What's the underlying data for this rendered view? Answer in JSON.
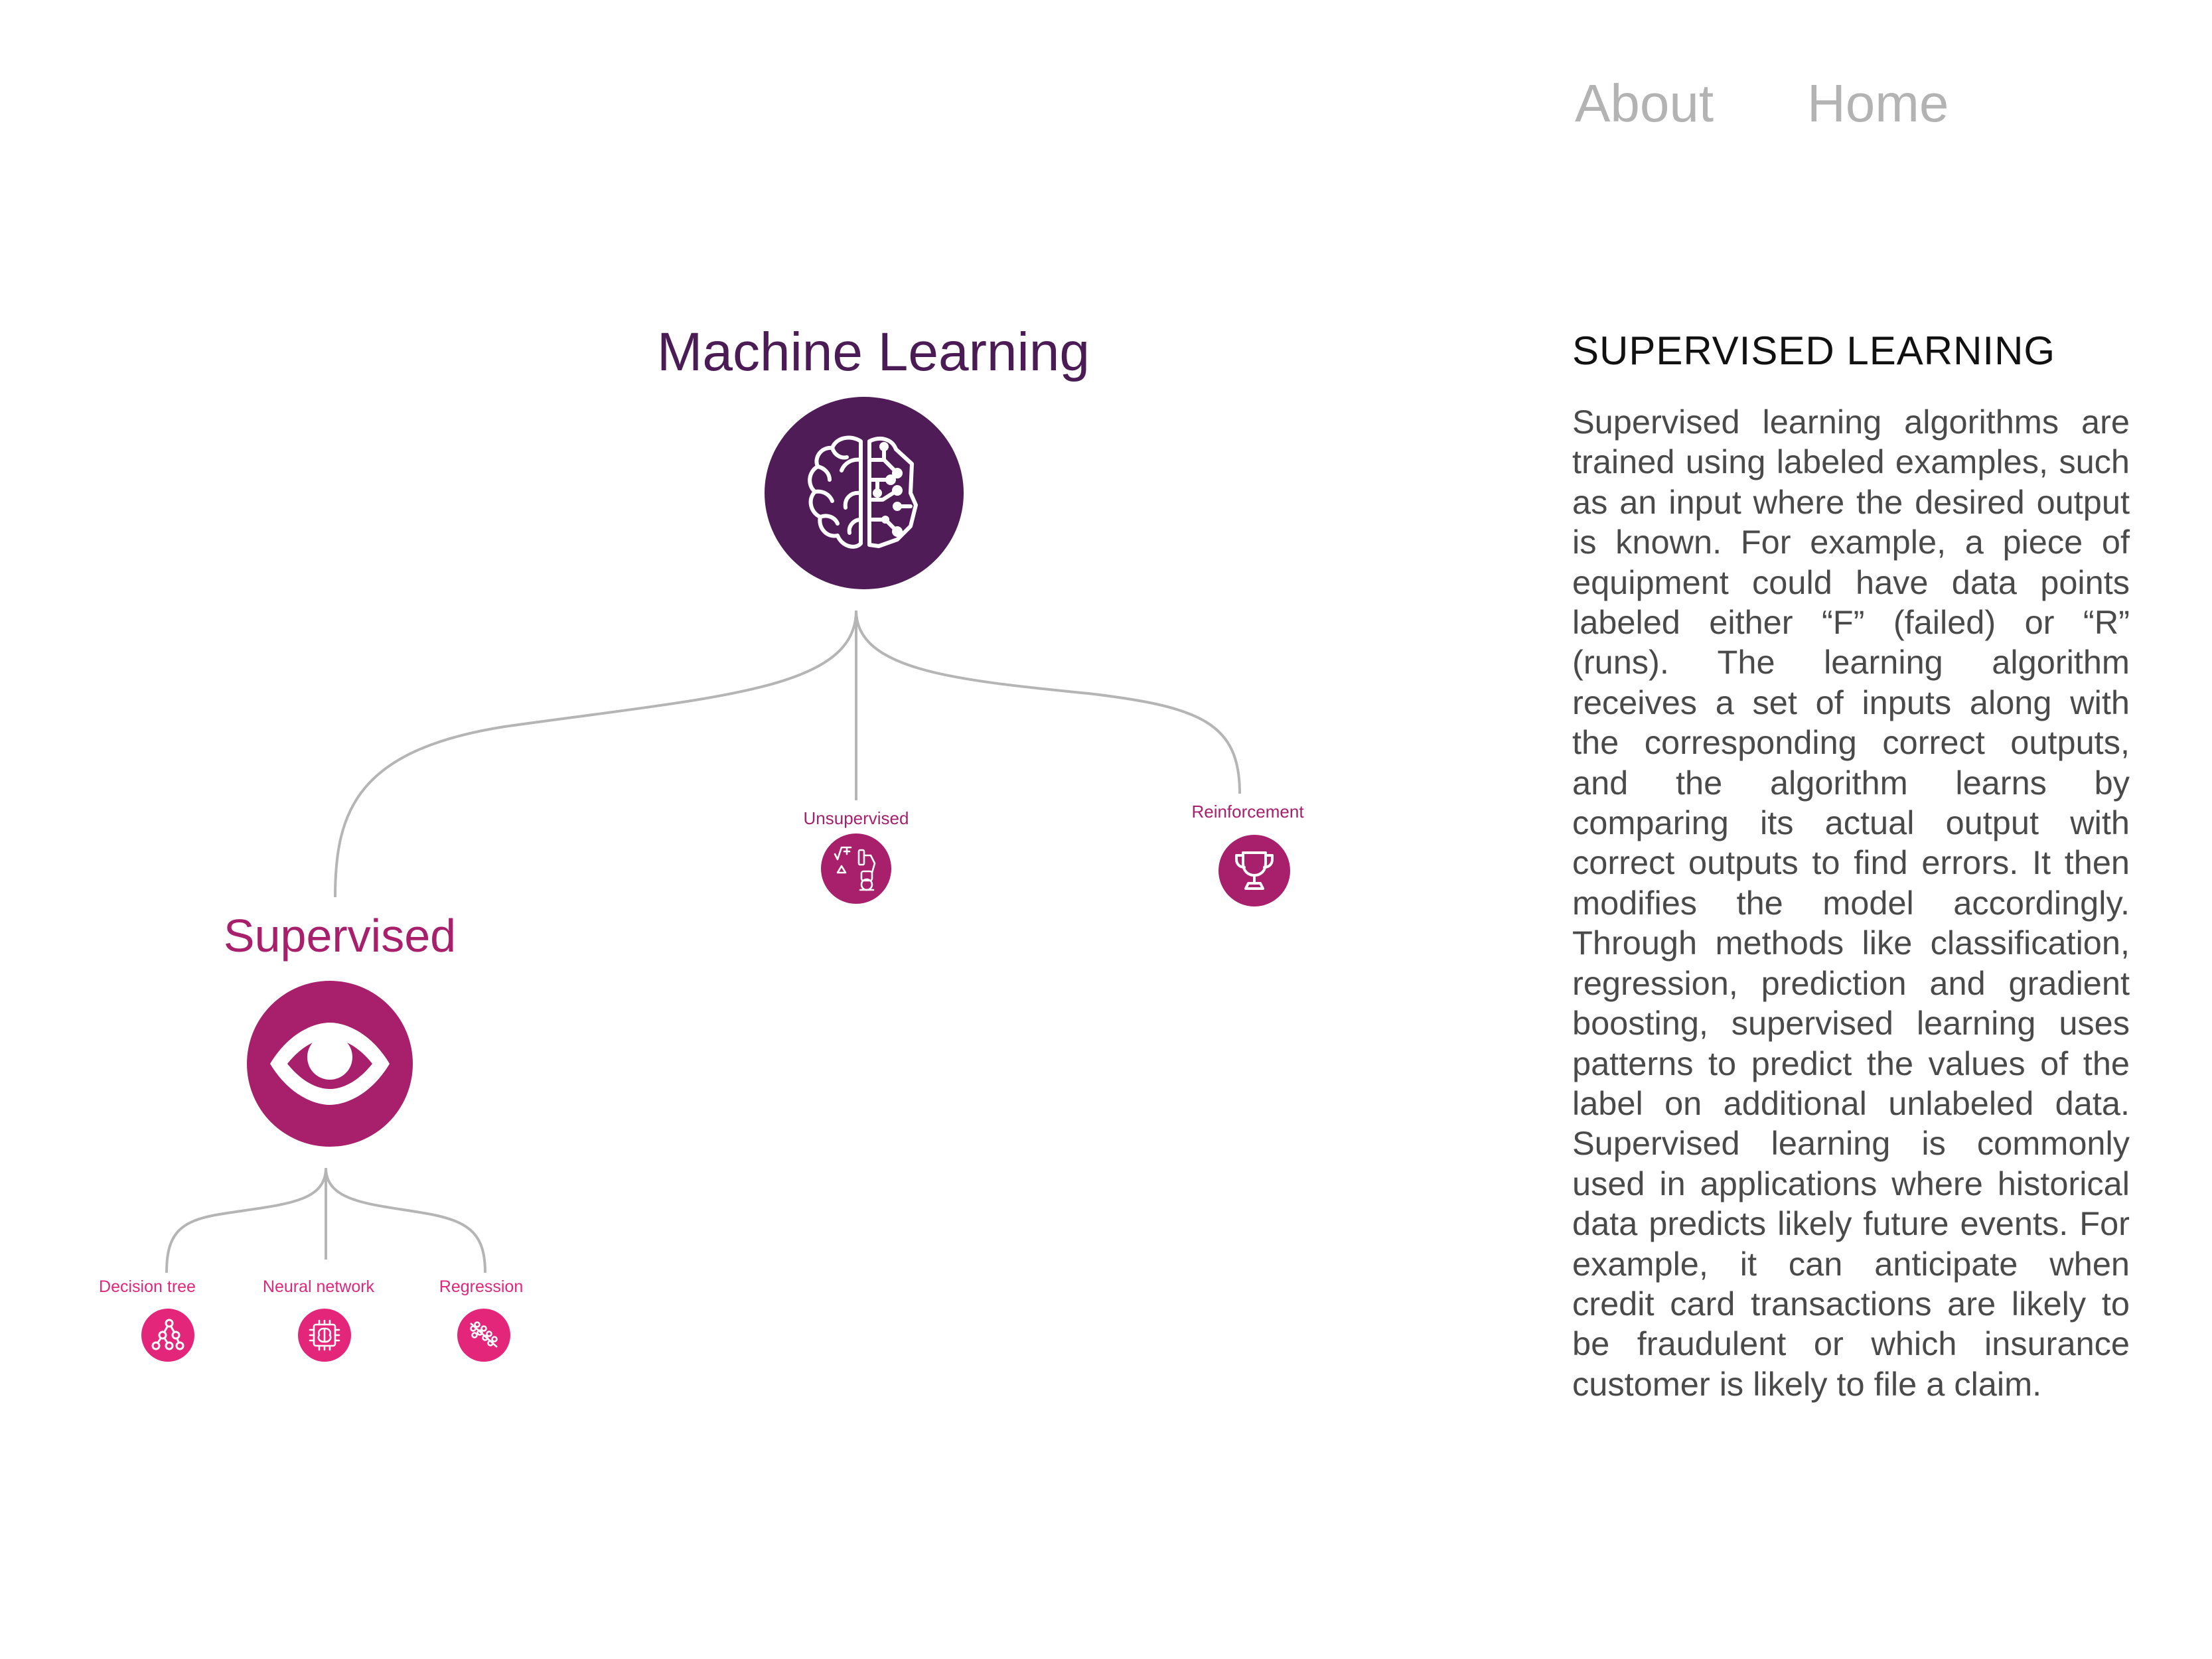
{
  "nav": {
    "about_label": "About",
    "home_label": "Home"
  },
  "tree": {
    "root": {
      "title": "Machine Learning",
      "icon": "brain-circuit-icon",
      "color": "#4f1c57"
    },
    "branches": {
      "supervised": {
        "title": "Supervised",
        "icon": "eye-icon",
        "color": "#a8206c"
      },
      "unsupervised": {
        "title": "Unsupervised",
        "icon": "math-robot-icon",
        "color": "#a8206c"
      },
      "reinforcement": {
        "title": "Reinforcement",
        "icon": "trophy-icon",
        "color": "#a8206c"
      }
    },
    "leaves": {
      "decision_tree": {
        "title": "Decision tree",
        "icon": "decision-tree-icon"
      },
      "neural_network": {
        "title": "Neural network",
        "icon": "brain-chip-icon"
      },
      "regression": {
        "title": "Regression",
        "icon": "regression-plot-icon"
      },
      "color": "#e3267a"
    },
    "line_color": "#b5b5b5"
  },
  "info": {
    "title": "SUPERVISED LEARNING",
    "body": "Supervised learning algorithms are trained using labeled examples, such as an input where the desired output is known. For example, a piece of equipment could have data points labeled either “F” (failed) or “R” (runs). The learning algorithm receives a set of inputs along with the corresponding correct outputs, and the algorithm learns by comparing its actual output with correct outputs to find errors. It then modifies the model accordingly. Through methods like classification, regression, prediction and gradient boosting, supervised learning uses patterns to predict the values of the label on additional unlabeled data. Supervised learning is commonly used in applications where historical data predicts likely future events. For example, it can anticipate when credit card transactions are likely to be fraudulent or which insurance customer is likely to file a claim."
  }
}
